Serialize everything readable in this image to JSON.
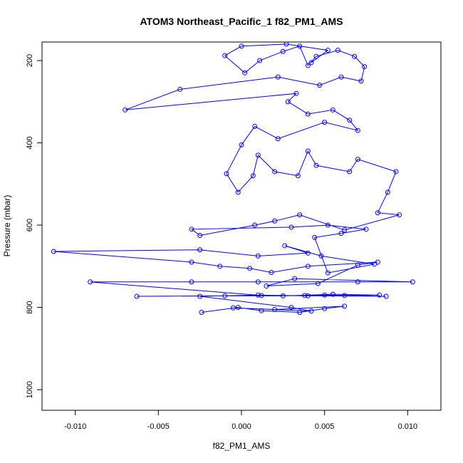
{
  "chart_data": {
    "type": "scatter",
    "title": "ATOM3 Northeast_Pacific_1 f82_PM1_AMS",
    "xlabel": "f82_PM1_AMS",
    "ylabel": "Pressure (mbar)",
    "xlim": [
      -0.012,
      0.012
    ],
    "ylim": [
      1050,
      155
    ],
    "y_reversed": true,
    "x_ticks": [
      -0.01,
      -0.005,
      0.0,
      0.005,
      0.01
    ],
    "x_tick_labels": [
      "-0.010",
      "-0.005",
      "0.000",
      "0.005",
      "0.010"
    ],
    "y_ticks": [
      200,
      400,
      600,
      800,
      1000
    ],
    "y_tick_labels": [
      "200",
      "400",
      "600",
      "800",
      "1000"
    ],
    "grid": false,
    "legend": "none",
    "marker": "open-circle",
    "lines_connect_points": true,
    "series_color": "#0000ff",
    "series": [
      {
        "points": [
          [
            -0.0024,
            812
          ],
          [
            -0.0002,
            800
          ],
          [
            0.0012,
            808
          ],
          [
            0.0035,
            812
          ],
          [
            0.005,
            803
          ],
          [
            0.0062,
            797
          ],
          [
            0.002,
            805
          ],
          [
            -0.0005,
            801
          ],
          [
            0.0042,
            809
          ],
          [
            0.003,
            800
          ],
          [
            -0.0025,
            773
          ],
          [
            0.001,
            770
          ],
          [
            0.004,
            772
          ],
          [
            0.0062,
            771
          ],
          [
            0.0083,
            770
          ],
          [
            0.0055,
            768
          ],
          [
            0.0025,
            772
          ],
          [
            -0.001,
            772
          ],
          [
            -0.0063,
            773
          ],
          [
            0.0038,
            771
          ],
          [
            0.005,
            770
          ],
          [
            0.0087,
            773
          ],
          [
            0.0012,
            771
          ],
          [
            -0.0091,
            738
          ],
          [
            -0.003,
            738
          ],
          [
            0.001,
            738
          ],
          [
            0.007,
            738
          ],
          [
            0.0103,
            738
          ],
          [
            0.0032,
            730
          ],
          [
            0.0015,
            748
          ],
          [
            0.0046,
            742
          ],
          [
            0.007,
            697
          ],
          [
            0.0082,
            690
          ],
          [
            0.004,
            700
          ],
          [
            0.0018,
            715
          ],
          [
            0.0005,
            705
          ],
          [
            -0.0013,
            700
          ],
          [
            -0.003,
            690
          ],
          [
            -0.0113,
            664
          ],
          [
            -0.0025,
            660
          ],
          [
            0.001,
            675
          ],
          [
            0.004,
            668
          ],
          [
            0.0026,
            650
          ],
          [
            0.0048,
            675
          ],
          [
            0.008,
            695
          ],
          [
            0.0052,
            716
          ],
          [
            0.0044,
            630
          ],
          [
            0.006,
            620
          ],
          [
            0.0075,
            610
          ],
          [
            0.0052,
            600
          ],
          [
            0.003,
            605
          ],
          [
            -0.003,
            610
          ],
          [
            -0.0025,
            625
          ],
          [
            0.0008,
            600
          ],
          [
            0.002,
            590
          ],
          [
            0.0035,
            575
          ],
          [
            0.0062,
            612
          ],
          [
            0.0095,
            575
          ],
          [
            0.0082,
            570
          ],
          [
            0.0088,
            520
          ],
          [
            0.0093,
            470
          ],
          [
            0.007,
            440
          ],
          [
            0.0065,
            470
          ],
          [
            0.0045,
            455
          ],
          [
            0.004,
            420
          ],
          [
            0.0034,
            480
          ],
          [
            0.002,
            470
          ],
          [
            0.001,
            430
          ],
          [
            0.0007,
            480
          ],
          [
            -0.0002,
            520
          ],
          [
            -0.0009,
            475
          ],
          [
            0.0,
            405
          ],
          [
            0.0008,
            360
          ],
          [
            0.0022,
            390
          ],
          [
            0.005,
            350
          ],
          [
            0.007,
            370
          ],
          [
            0.0065,
            345
          ],
          [
            0.0055,
            320
          ],
          [
            0.004,
            330
          ],
          [
            0.0028,
            300
          ],
          [
            0.0033,
            280
          ],
          [
            -0.007,
            320
          ],
          [
            -0.0037,
            270
          ],
          [
            0.0022,
            240
          ],
          [
            0.0047,
            260
          ],
          [
            0.006,
            240
          ],
          [
            0.0072,
            250
          ],
          [
            0.0074,
            215
          ],
          [
            0.0068,
            190
          ],
          [
            0.0058,
            175
          ],
          [
            0.0045,
            190
          ],
          [
            0.004,
            212
          ],
          [
            0.0035,
            165
          ],
          [
            0.0025,
            178
          ],
          [
            0.0011,
            200
          ],
          [
            0.0002,
            230
          ],
          [
            -0.001,
            188
          ],
          [
            0.0,
            165
          ],
          [
            0.0027,
            160
          ],
          [
            0.0052,
            175
          ],
          [
            0.0042,
            205
          ]
        ]
      }
    ]
  }
}
